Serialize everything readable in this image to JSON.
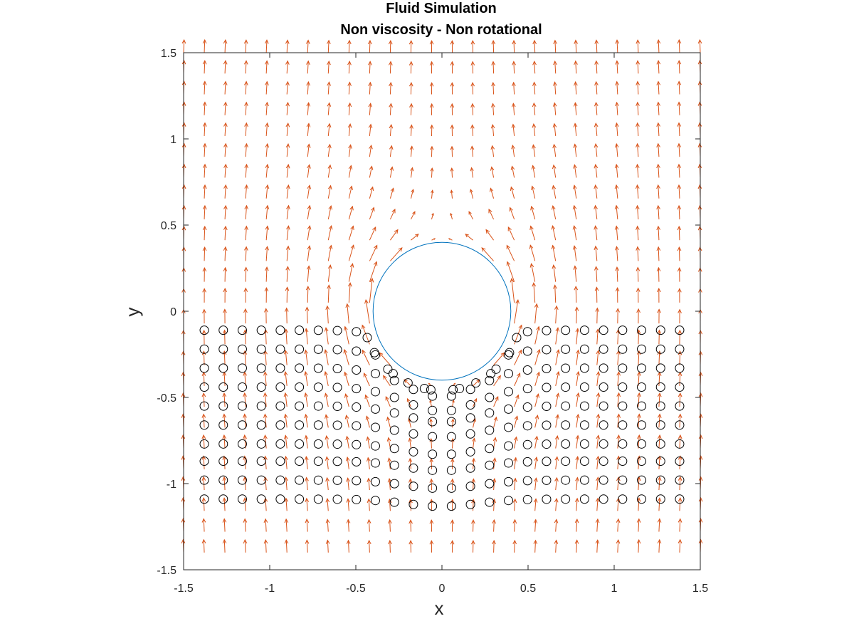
{
  "chart_data": {
    "type": "vector-field",
    "title": "Fluid Simulation",
    "subtitle": "Non viscosity - Non rotational",
    "xlabel": "x",
    "ylabel": "y",
    "xlim": [
      -1.5,
      1.5
    ],
    "ylim": [
      -1.5,
      1.5
    ],
    "xticks": [
      -1.5,
      -1,
      -0.5,
      0,
      0.5,
      1,
      1.5
    ],
    "yticks": [
      -1.5,
      -1,
      -0.5,
      0,
      0.5,
      1,
      1.5
    ],
    "xtick_labels": [
      "-1.5",
      "-1",
      "-0.5",
      "0",
      "0.5",
      "1",
      "1.5"
    ],
    "ytick_labels": [
      "-1.5",
      "-1",
      "-0.5",
      "0",
      "0.5",
      "1",
      "1.5"
    ],
    "grid": false,
    "obstacle": {
      "shape": "circle",
      "center": [
        0,
        0
      ],
      "radius": 0.4
    },
    "flow": {
      "model": "potential flow past a cylinder",
      "direction": "+y",
      "grid_x_range": [
        -1.5,
        1.5
      ],
      "grid_y_range": [
        -1.4,
        1.5
      ],
      "grid_count_x": 26,
      "grid_count_y": 25
    },
    "particles": {
      "marker": "circle",
      "rows_y": [
        -0.11,
        -0.22,
        -0.33,
        -0.44,
        -0.55,
        -0.66,
        -0.77,
        -0.87,
        -0.98,
        -1.09
      ],
      "x_range": [
        -1.38,
        1.38
      ],
      "count_per_row": 26
    },
    "colors": {
      "arrows": "#D95319",
      "obstacle": "#0072BD",
      "particles": "#000000",
      "axes": "#262626"
    }
  }
}
